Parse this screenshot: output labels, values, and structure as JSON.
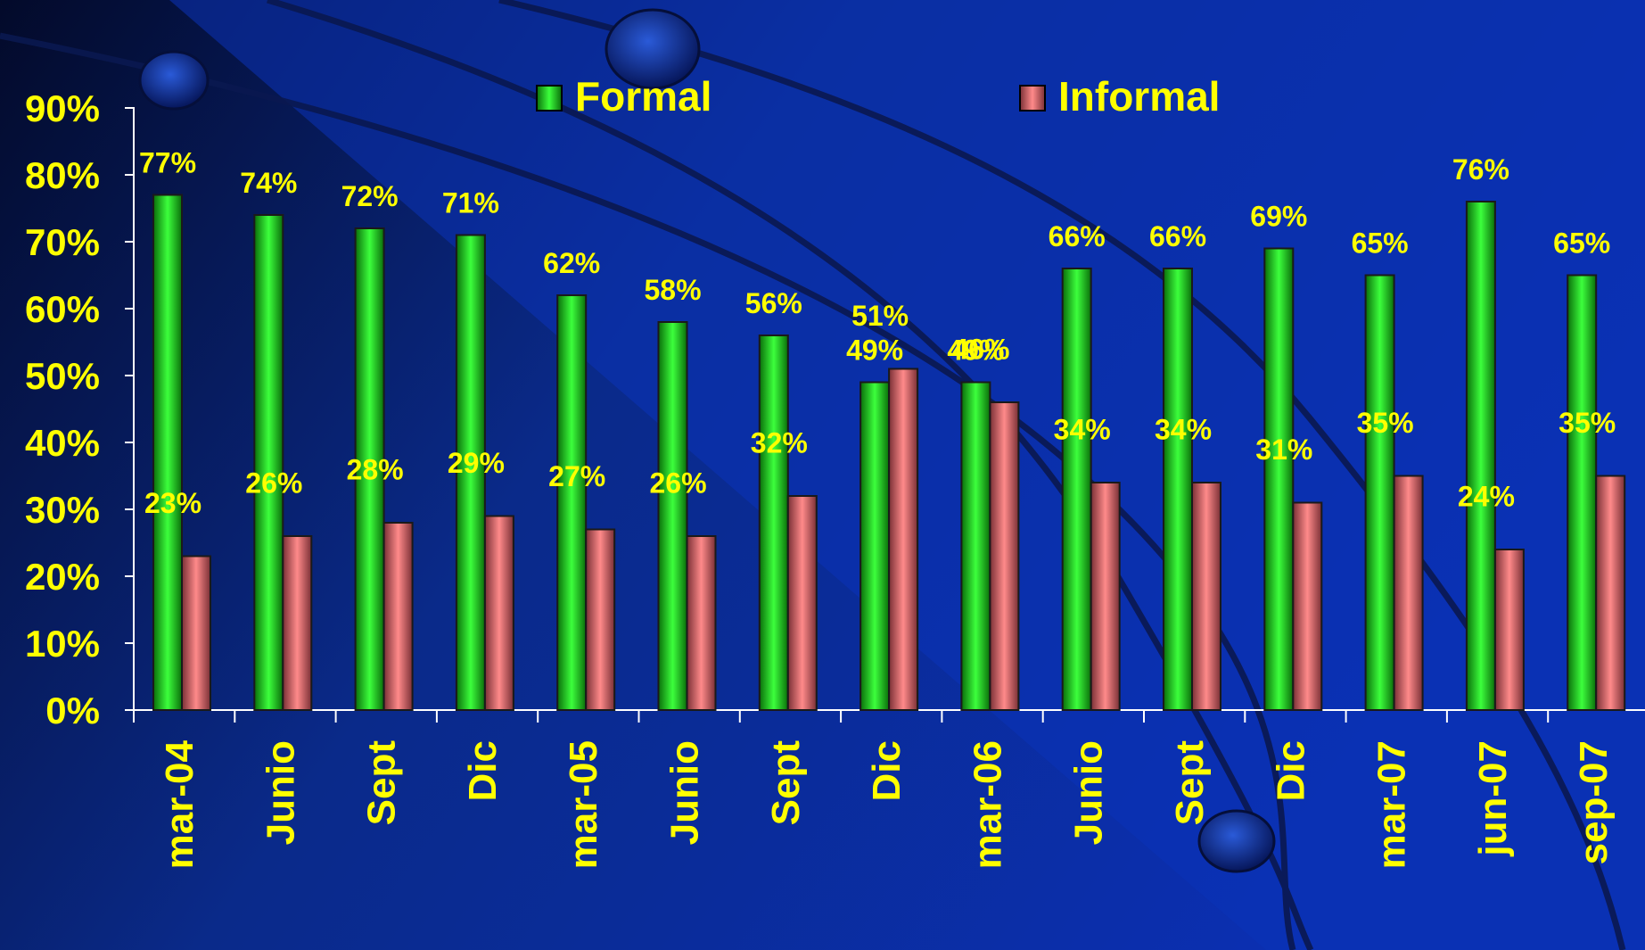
{
  "chart_data": {
    "type": "bar",
    "categories": [
      "mar-04",
      "Junio",
      "Sept",
      "Dic",
      "mar-05",
      "Junio",
      "Sept",
      "Dic",
      "mar-06",
      "Junio",
      "Sept",
      "Dic",
      "mar-07",
      "jun-07",
      "sep-07"
    ],
    "series": [
      {
        "name": "Formal",
        "values": [
          77,
          74,
          72,
          71,
          62,
          58,
          56,
          49,
          49,
          66,
          66,
          69,
          65,
          76,
          65
        ]
      },
      {
        "name": "Informal",
        "values": [
          23,
          26,
          28,
          29,
          27,
          26,
          32,
          51,
          46,
          34,
          34,
          31,
          35,
          24,
          35
        ]
      }
    ],
    "value_labels": {
      "Formal": [
        "77%",
        "74%",
        "72%",
        "71%",
        "62%",
        "58%",
        "56%",
        "49%",
        "49%",
        "66%",
        "66%",
        "69%",
        "65%",
        "76%",
        "65%"
      ],
      "Informal": [
        "23%",
        "26%",
        "28%",
        "29%",
        "27%",
        "26%",
        "32%",
        "51%",
        "46%",
        "34%",
        "34%",
        "31%",
        "35%",
        "24%",
        "35%"
      ]
    },
    "y_ticks": [
      "0%",
      "10%",
      "20%",
      "30%",
      "40%",
      "50%",
      "60%",
      "70%",
      "80%",
      "90%"
    ],
    "ylim": [
      0,
      90
    ],
    "grid": false,
    "legend_position": "top",
    "colors": {
      "Formal": "#1fb81f",
      "Informal": "#c8646a",
      "text": "#ffff00"
    }
  }
}
